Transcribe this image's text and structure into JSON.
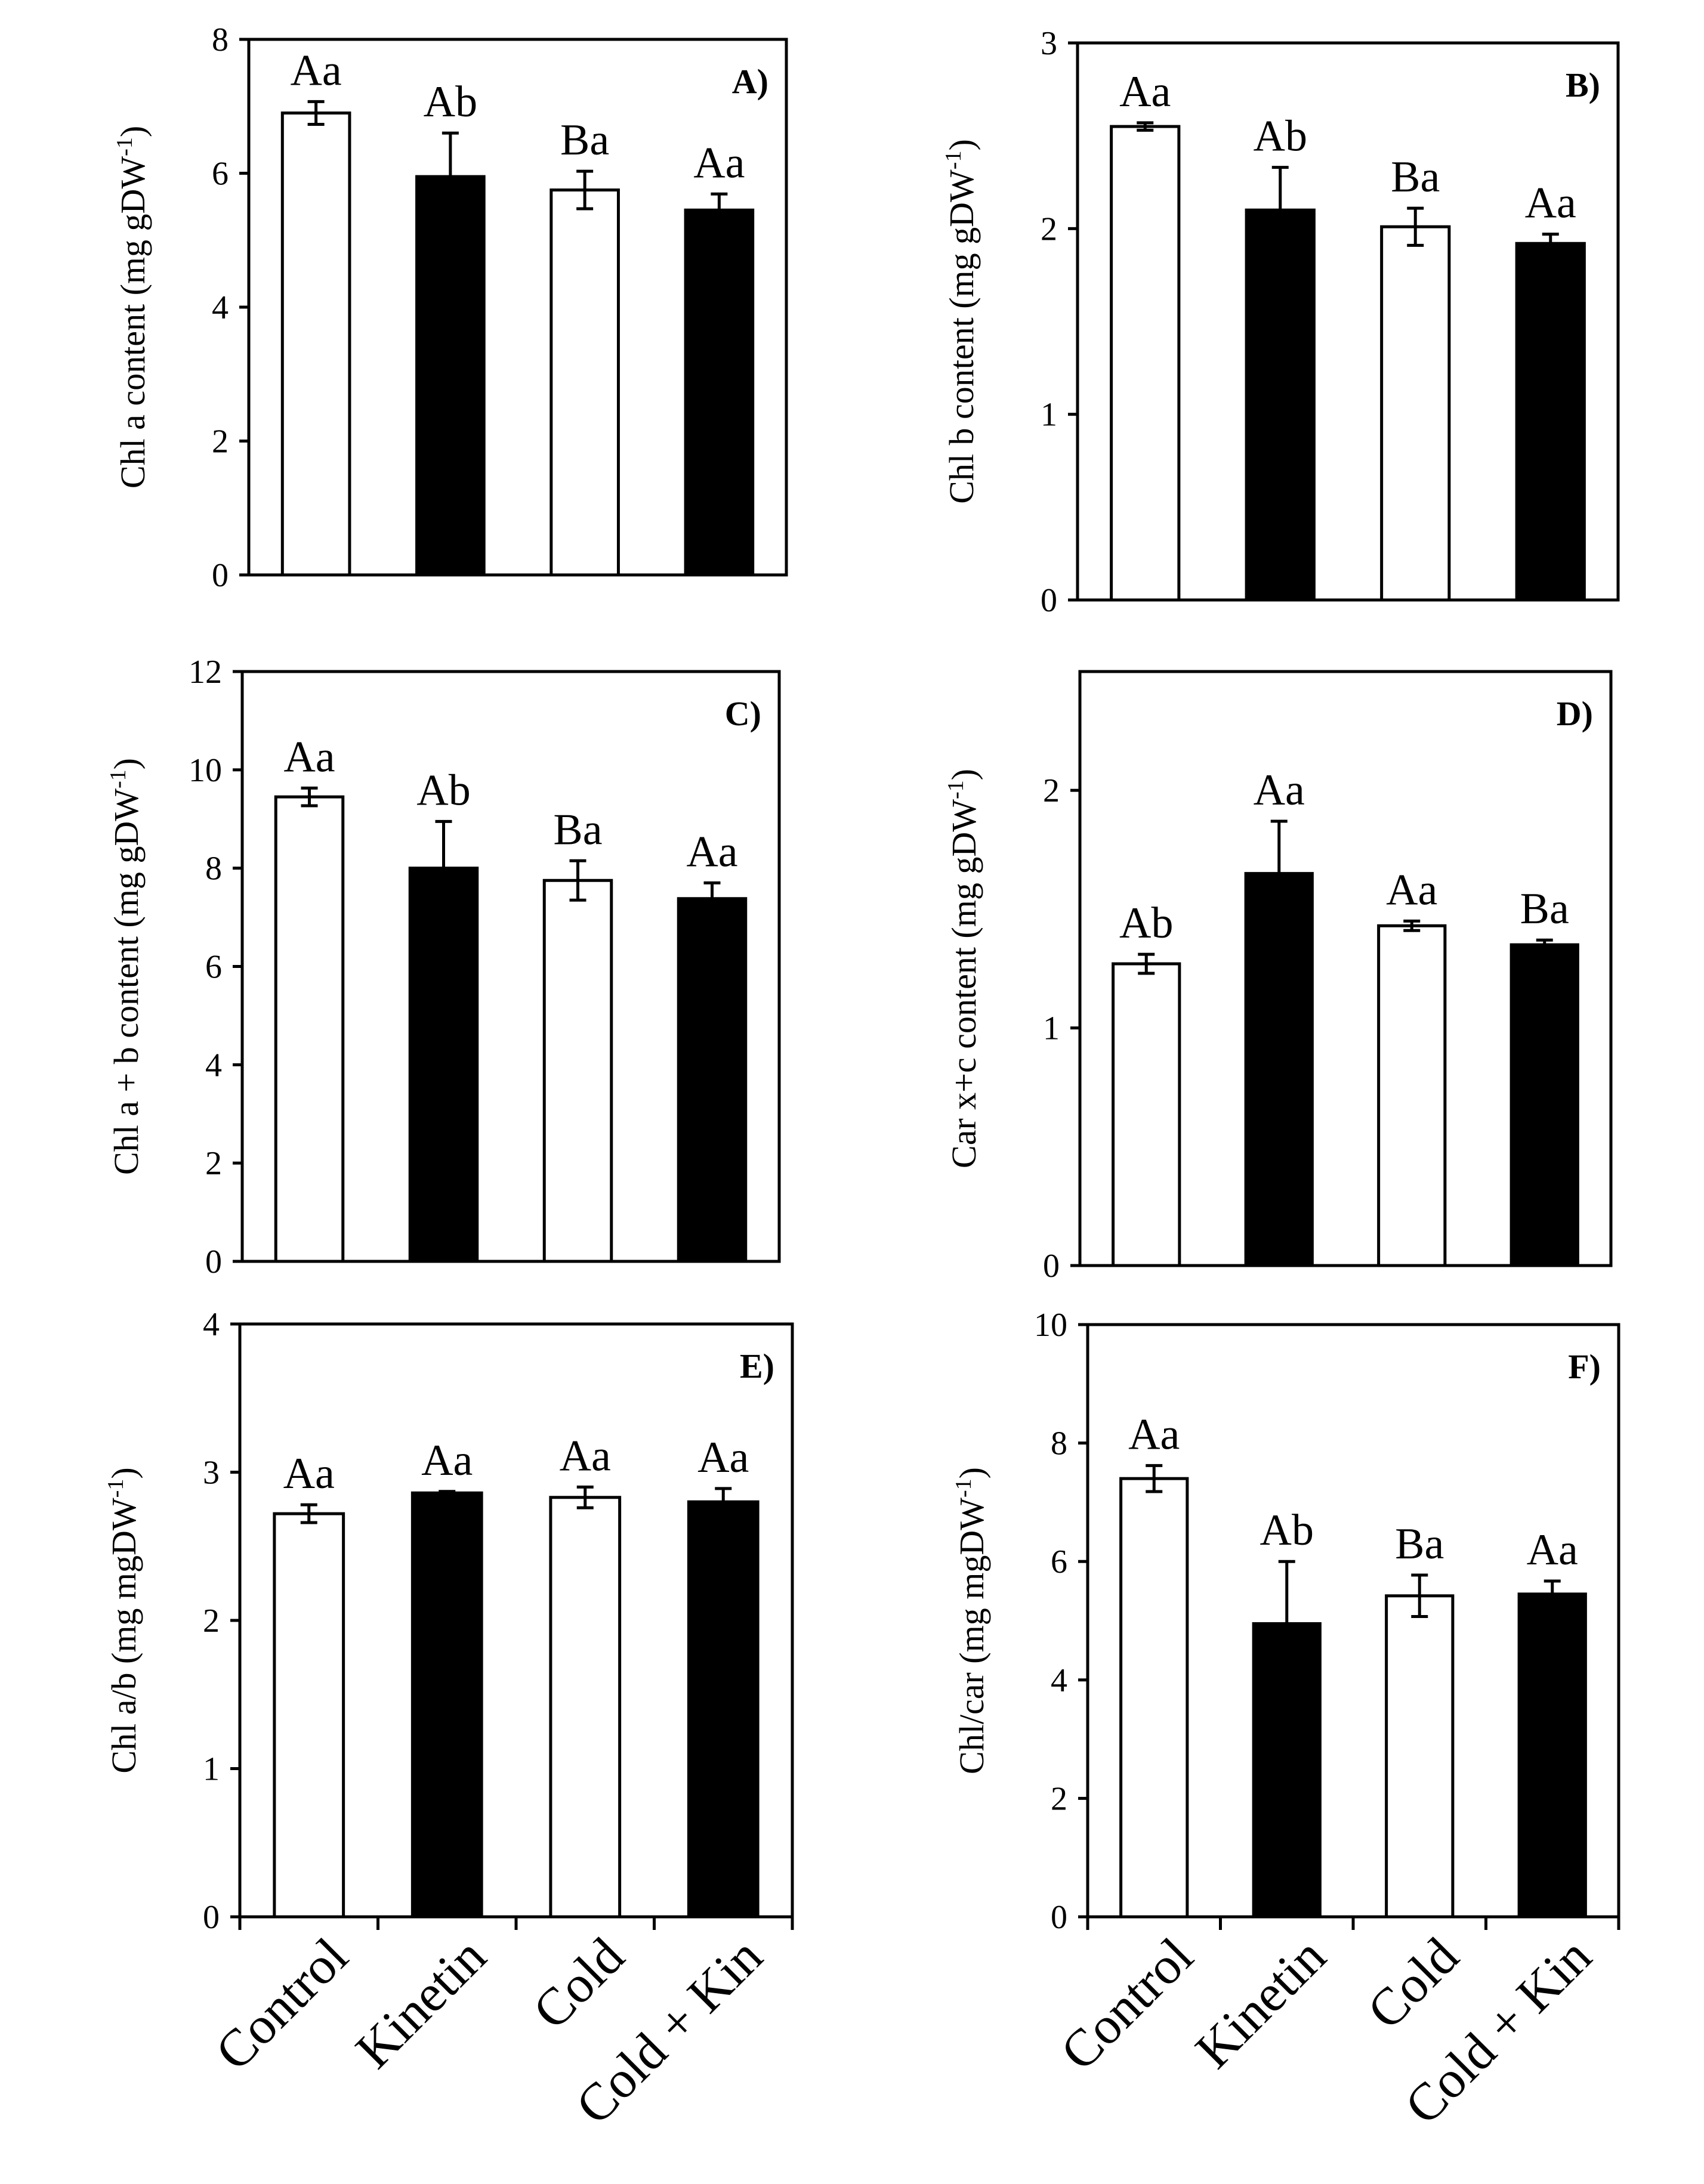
{
  "chart_data": [
    {
      "type": "bar",
      "panel": "A)",
      "title": "",
      "ylabel": "Chl a content (mg gDW",
      "ylabel_sup": "-1",
      "ylabel_close": ")",
      "ylim": [
        0,
        8
      ],
      "yticks": [
        0,
        2,
        4,
        6,
        8
      ],
      "categories": [
        "Control",
        "Kinetin",
        "Cold",
        "Cold + Kin"
      ],
      "values": [
        6.9,
        5.95,
        5.75,
        5.45
      ],
      "errors": [
        0.17,
        0.65,
        0.28,
        0.24
      ],
      "fills": [
        "#ffffff",
        "#000000",
        "#ffffff",
        "#000000"
      ],
      "letters": [
        "Aa",
        "Ab",
        "Ba",
        "Aa"
      ]
    },
    {
      "type": "bar",
      "panel": "B)",
      "title": "",
      "ylabel": "Chl b content (mg gDW",
      "ylabel_sup": "-1",
      "ylabel_close": ")",
      "ylim": [
        0,
        3
      ],
      "yticks": [
        0,
        1,
        2,
        3
      ],
      "categories": [
        "Control",
        "Kinetin",
        "Cold",
        "Cold + Kin"
      ],
      "values": [
        2.55,
        2.1,
        2.01,
        1.92
      ],
      "errors": [
        0.02,
        0.23,
        0.1,
        0.05
      ],
      "fills": [
        "#ffffff",
        "#000000",
        "#ffffff",
        "#000000"
      ],
      "letters": [
        "Aa",
        "Ab",
        "Ba",
        "Aa"
      ]
    },
    {
      "type": "bar",
      "panel": "C)",
      "title": "",
      "ylabel": "Chl a + b content (mg gDW",
      "ylabel_sup": "-1",
      "ylabel_close": ")",
      "ylim": [
        0,
        12
      ],
      "yticks": [
        0,
        2,
        4,
        6,
        8,
        10,
        12
      ],
      "categories": [
        "Control",
        "Kinetin",
        "Cold",
        "Cold + Kin"
      ],
      "values": [
        9.45,
        8.0,
        7.75,
        7.38
      ],
      "errors": [
        0.18,
        0.95,
        0.4,
        0.32
      ],
      "fills": [
        "#ffffff",
        "#000000",
        "#ffffff",
        "#000000"
      ],
      "letters": [
        "Aa",
        "Ab",
        "Ba",
        "Aa"
      ]
    },
    {
      "type": "bar",
      "panel": "D)",
      "title": "",
      "ylabel": "Car x+c content (mg gDW",
      "ylabel_sup": "-1",
      "ylabel_close": ")",
      "ylim": [
        0,
        2.5
      ],
      "yticks": [
        0,
        1,
        2
      ],
      "categories": [
        "Control",
        "Kinetin",
        "Cold",
        "Cold + Kin"
      ],
      "values": [
        1.27,
        1.65,
        1.43,
        1.35
      ],
      "errors": [
        0.04,
        0.22,
        0.02,
        0.02
      ],
      "fills": [
        "#ffffff",
        "#000000",
        "#ffffff",
        "#000000"
      ],
      "letters": [
        "Ab",
        "Aa",
        "Aa",
        "Ba"
      ]
    },
    {
      "type": "bar",
      "panel": "E)",
      "title": "",
      "ylabel": "Chl a/b (mg mgDW",
      "ylabel_sup": "-1",
      "ylabel_close": ")",
      "ylim": [
        0,
        4
      ],
      "yticks": [
        0,
        1,
        2,
        3,
        4
      ],
      "categories": [
        "Control",
        "Kinetin",
        "Cold",
        "Cold + Kin"
      ],
      "values": [
        2.72,
        2.86,
        2.83,
        2.8
      ],
      "errors": [
        0.06,
        0.01,
        0.07,
        0.09
      ],
      "fills": [
        "#ffffff",
        "#000000",
        "#ffffff",
        "#000000"
      ],
      "letters": [
        "Aa",
        "Aa",
        "Aa",
        "Aa"
      ]
    },
    {
      "type": "bar",
      "panel": "F)",
      "title": "",
      "ylabel": "Chl/car (mg mgDW",
      "ylabel_sup": "-1",
      "ylabel_close": ")",
      "ylim": [
        0,
        10
      ],
      "yticks": [
        0,
        2,
        4,
        6,
        8,
        10
      ],
      "categories": [
        "Control",
        "Kinetin",
        "Cold",
        "Cold + Kin"
      ],
      "values": [
        7.4,
        4.95,
        5.42,
        5.45
      ],
      "errors": [
        0.22,
        1.05,
        0.35,
        0.22
      ],
      "fills": [
        "#ffffff",
        "#000000",
        "#ffffff",
        "#000000"
      ],
      "letters": [
        "Aa",
        "Ab",
        "Ba",
        "Aa"
      ]
    }
  ]
}
